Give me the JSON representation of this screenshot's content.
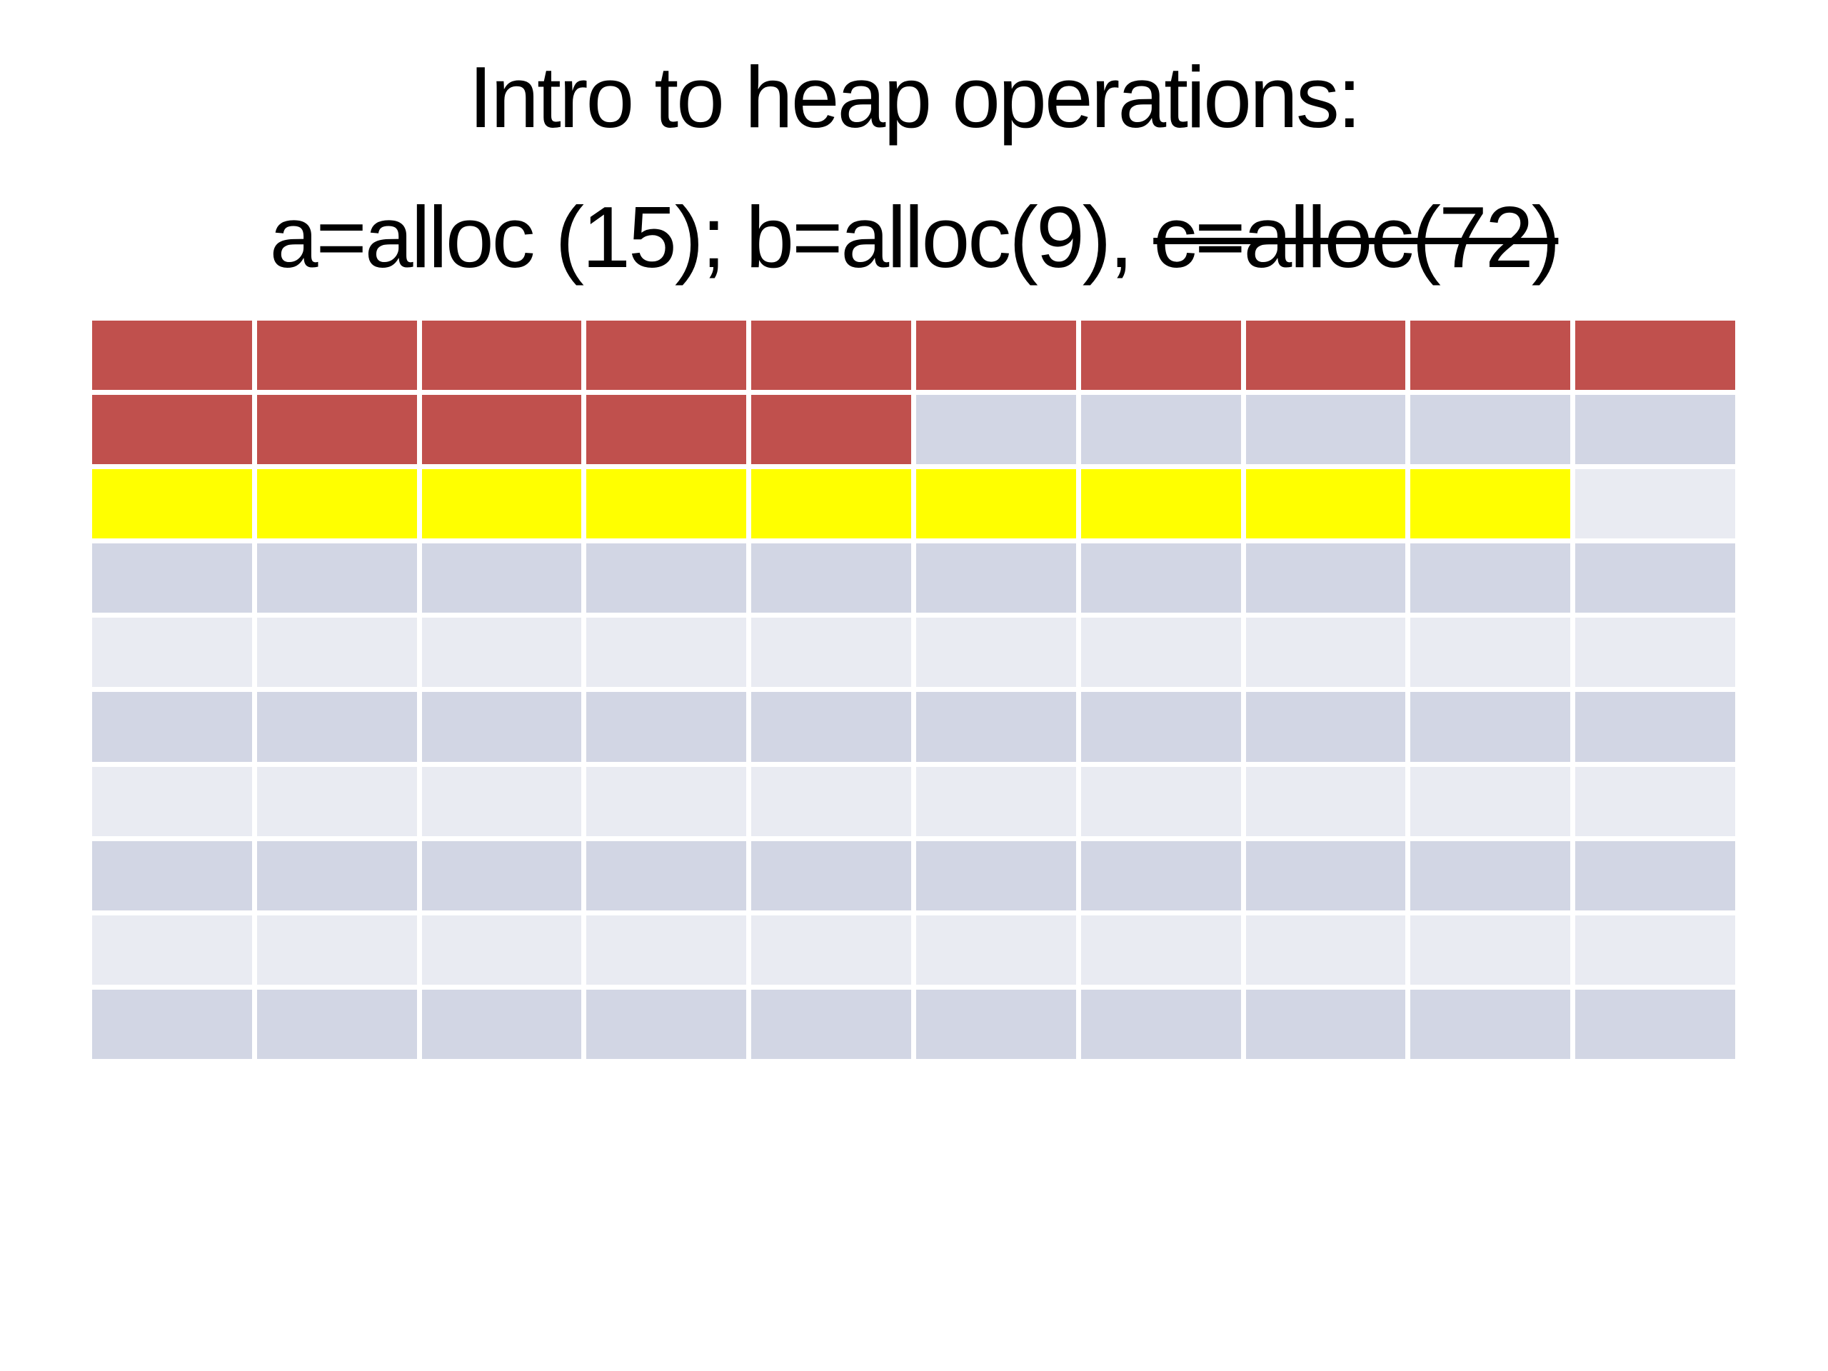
{
  "slide": {
    "title_line1": "Intro to heap operations:",
    "title_line2_prefix": "a=alloc (15); b=alloc(9), ",
    "title_line2_struck": "c=alloc(72)"
  },
  "heap_grid": {
    "columns": 10,
    "rows": 10,
    "cell_colors": {
      "a_alloc": "#C0504D",
      "b_alloc": "#FFFF00",
      "free_dark": "#D2D6E4",
      "free_light": "#E9EBF2"
    },
    "cells": [
      [
        "a_alloc",
        "a_alloc",
        "a_alloc",
        "a_alloc",
        "a_alloc",
        "a_alloc",
        "a_alloc",
        "a_alloc",
        "a_alloc",
        "a_alloc"
      ],
      [
        "a_alloc",
        "a_alloc",
        "a_alloc",
        "a_alloc",
        "a_alloc",
        "free_dark",
        "free_dark",
        "free_dark",
        "free_dark",
        "free_dark"
      ],
      [
        "b_alloc",
        "b_alloc",
        "b_alloc",
        "b_alloc",
        "b_alloc",
        "b_alloc",
        "b_alloc",
        "b_alloc",
        "b_alloc",
        "free_light"
      ],
      [
        "free_dark",
        "free_dark",
        "free_dark",
        "free_dark",
        "free_dark",
        "free_dark",
        "free_dark",
        "free_dark",
        "free_dark",
        "free_dark"
      ],
      [
        "free_light",
        "free_light",
        "free_light",
        "free_light",
        "free_light",
        "free_light",
        "free_light",
        "free_light",
        "free_light",
        "free_light"
      ],
      [
        "free_dark",
        "free_dark",
        "free_dark",
        "free_dark",
        "free_dark",
        "free_dark",
        "free_dark",
        "free_dark",
        "free_dark",
        "free_dark"
      ],
      [
        "free_light",
        "free_light",
        "free_light",
        "free_light",
        "free_light",
        "free_light",
        "free_light",
        "free_light",
        "free_light",
        "free_light"
      ],
      [
        "free_dark",
        "free_dark",
        "free_dark",
        "free_dark",
        "free_dark",
        "free_dark",
        "free_dark",
        "free_dark",
        "free_dark",
        "free_dark"
      ],
      [
        "free_light",
        "free_light",
        "free_light",
        "free_light",
        "free_light",
        "free_light",
        "free_light",
        "free_light",
        "free_light",
        "free_light"
      ],
      [
        "free_dark",
        "free_dark",
        "free_dark",
        "free_dark",
        "free_dark",
        "free_dark",
        "free_dark",
        "free_dark",
        "free_dark",
        "free_dark"
      ]
    ]
  }
}
